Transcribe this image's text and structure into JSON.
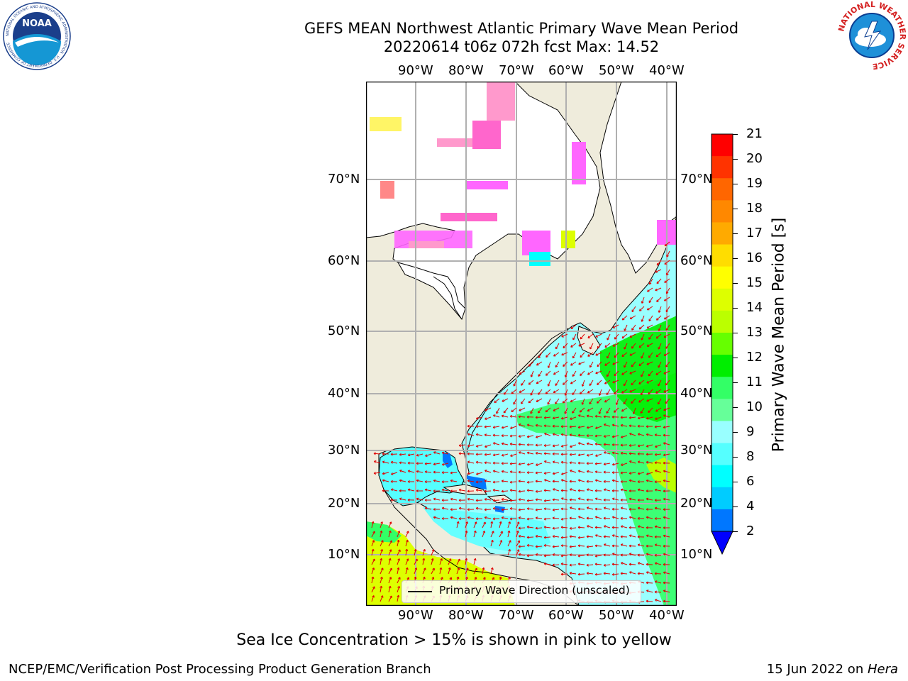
{
  "header": {
    "title_line1": "GEFS MEAN Northwest Atlantic Primary Wave Mean Period",
    "title_line2": "20220614 t06z 072h fcst   Max: 14.52"
  },
  "logos": {
    "noaa_text": "NOAA",
    "noaa_ring_text": "NATIONAL OCEANIC AND ATMOSPHERIC ADMINISTRATION · U.S. DEPARTMENT OF COMMERCE",
    "nws_ring_text": "NATIONAL WEATHER SERVICE"
  },
  "map": {
    "lon_labels": [
      "90°W",
      "80°W",
      "70°W",
      "60°W",
      "50°W",
      "40°W"
    ],
    "lat_labels": [
      "70°N",
      "60°N",
      "50°N",
      "40°N",
      "30°N",
      "20°N",
      "10°N"
    ],
    "legend_label": "Primary Wave Direction (unscaled)",
    "colors": {
      "land": "#efecdc",
      "ice_free_land": "#ffffff",
      "arrow": "#e00000",
      "grid": "#b0b0b0"
    }
  },
  "colorbar": {
    "title": "Primary Wave Mean Period [s]",
    "ticks": [
      "21",
      "20",
      "19",
      "18",
      "17",
      "16",
      "15",
      "14",
      "13",
      "12",
      "11",
      "10",
      "9",
      "8",
      "6",
      "4",
      "2"
    ],
    "colors": [
      "#ff0000",
      "#ff3300",
      "#ff6600",
      "#ff8800",
      "#ffaa00",
      "#ffdd00",
      "#ffff00",
      "#ddff00",
      "#bbff00",
      "#66ff00",
      "#00ee00",
      "#33ff66",
      "#66ff99",
      "#99ffff",
      "#55ffff",
      "#00ffff",
      "#00ccff",
      "#0077ff"
    ],
    "extend_color": "#0000ff"
  },
  "footer": {
    "note": "Sea Ice Concentration > 15% is shown in pink to yellow",
    "left": "NCEP/EMC/Verification Post Processing Product Generation Branch",
    "right_date": "15 Jun 2022 on ",
    "right_host": "Hera"
  }
}
